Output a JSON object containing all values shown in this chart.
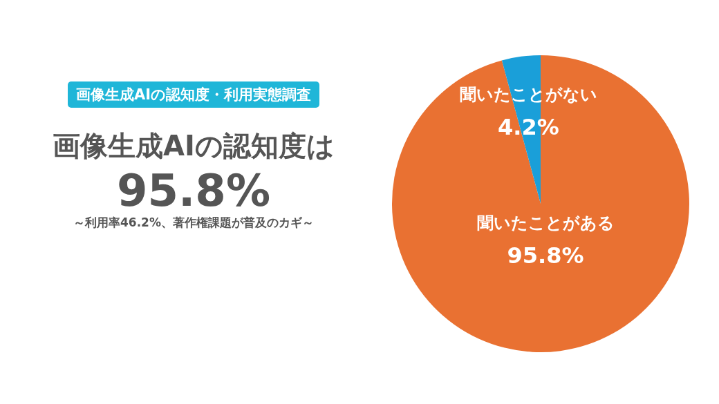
{
  "chart_data": {
    "type": "pie",
    "title": "画像生成AIの認知度は",
    "subtitle": "～利用率46.2%、著作権課題が普及のカギ～",
    "annotations": [
      "画像生成AIの認知度・利用実態調査",
      "95.8%"
    ],
    "categories": [
      "聞いたことがある",
      "聞いたことがない"
    ],
    "values": [
      95.8,
      4.2
    ],
    "colors": [
      "#e97132",
      "#1a9fd9"
    ],
    "value_labels": [
      "95.8%",
      "4.2%"
    ],
    "legend": false
  }
}
